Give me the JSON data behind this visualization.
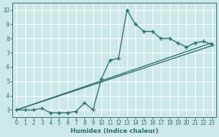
{
  "xlabel": "Humidex (Indice chaleur)",
  "ylabel": "",
  "xlim": [
    -0.5,
    23.5
  ],
  "ylim": [
    2.5,
    10.5
  ],
  "xticks": [
    0,
    1,
    2,
    3,
    4,
    5,
    6,
    7,
    8,
    9,
    10,
    11,
    12,
    13,
    14,
    15,
    16,
    17,
    18,
    19,
    20,
    21,
    22,
    23
  ],
  "yticks": [
    3,
    4,
    5,
    6,
    7,
    8,
    9,
    10
  ],
  "bg_color": "#cde8e8",
  "line_color": "#2a6e6e",
  "grid_color": "#ffffff",
  "line1_x": [
    0,
    1,
    2,
    3,
    4,
    5,
    6,
    7,
    8,
    9,
    10,
    11,
    12,
    13,
    14,
    15,
    16,
    17,
    18,
    19,
    20,
    21,
    22,
    23
  ],
  "line1_y": [
    3.0,
    3.0,
    3.0,
    3.1,
    2.8,
    2.8,
    2.8,
    2.9,
    3.5,
    3.0,
    5.2,
    6.5,
    6.6,
    10.0,
    9.0,
    8.5,
    8.5,
    8.0,
    8.0,
    7.7,
    7.4,
    7.7,
    7.8,
    7.6
  ],
  "line2_x": [
    0,
    23
  ],
  "line2_y": [
    3.0,
    7.7
  ],
  "line3_x": [
    0,
    23
  ],
  "line3_y": [
    3.0,
    7.5
  ],
  "marker": "+",
  "markersize": 4,
  "linewidth": 1.0
}
